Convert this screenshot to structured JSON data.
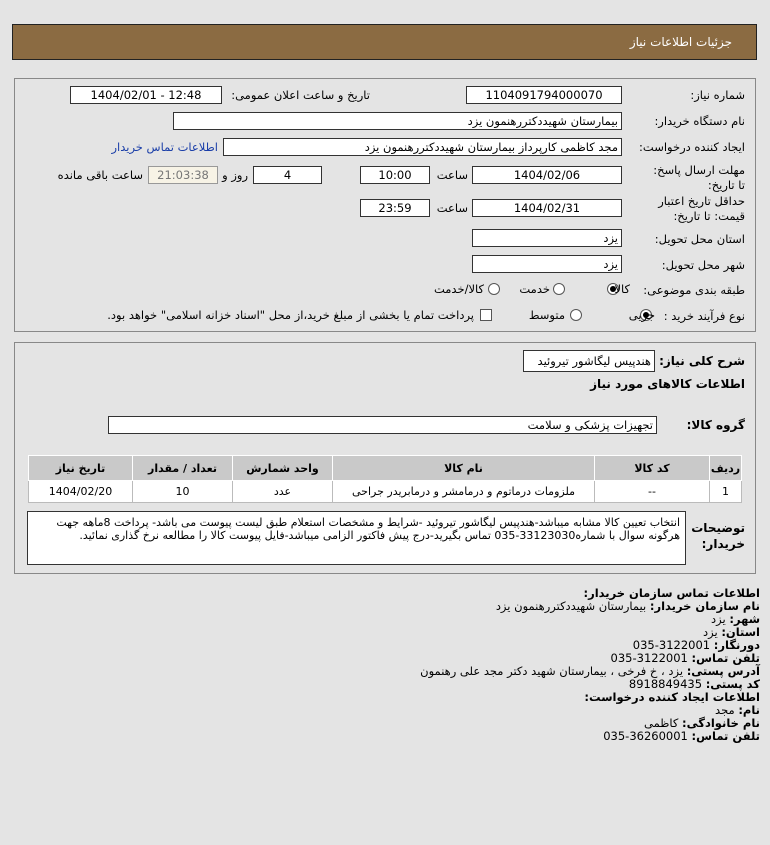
{
  "header": {
    "title": "جزئیات اطلاعات نیاز"
  },
  "form": {
    "need_number_label": "شماره نیاز:",
    "need_number": "1104091794000070",
    "announce_label": "تاریخ و ساعت اعلان عمومی:",
    "announce_value": "1404/02/01 - 12:48",
    "buyer_org_label": "نام دستگاه خریدار:",
    "buyer_org": "بیمارستان شهیددکتررهنمون یزد",
    "creator_label": "ایجاد کننده درخواست:",
    "creator": "مجد کاظمی کارپرداز بیمارستان شهیددکتررهنمون یزد",
    "contact_link": "اطلاعات تماس خریدار",
    "deadline_label": "مهلت ارسال پاسخ: تا تاریخ:",
    "deadline_date": "1404/02/06",
    "time_label": "ساعت",
    "deadline_time": "10:00",
    "days": "4",
    "days_label": "روز و",
    "countdown": "21:03:38",
    "remaining_label": "ساعت باقی مانده",
    "validity_label": "حداقل تاریخ اعتبار قیمت: تا تاریخ:",
    "validity_date": "1404/02/31",
    "validity_time": "23:59",
    "province_label": "استان محل تحویل:",
    "province": "یزد",
    "city_label": "شهر محل تحویل:",
    "city": "یزد",
    "category_label": "طبقه بندی موضوعی:",
    "category_options": [
      "کالا",
      "خدمت",
      "کالا/خدمت"
    ],
    "process_label": "نوع فرآیند خرید :",
    "process_options": [
      "جزیی",
      "متوسط"
    ],
    "payment_note": "پرداخت تمام یا بخشی از مبلغ خرید،از محل \"اسناد خزانه اسلامی\" خواهد بود."
  },
  "summary": {
    "label": "شرح کلی نیاز:",
    "value": "هندپیس لیگاشور تیروئید",
    "goods_title": "اطلاعات کالاهای مورد نیاز",
    "group_label": "گروه کالا:",
    "group": "تجهیزات پزشکی و سلامت"
  },
  "table": {
    "headers": [
      "ردیف",
      "کد کالا",
      "نام کالا",
      "واحد شمارش",
      "تعداد / مقدار",
      "تاریخ نیاز"
    ],
    "rows": [
      [
        "1",
        "--",
        "ملزومات درماتوم و درمامشر و درمابریدر جراحی",
        "عدد",
        "10",
        "1404/02/20"
      ]
    ]
  },
  "notes": {
    "label": "توضیحات خریدار:",
    "text": "انتخاب تعیین کالا مشابه میباشد-هندپیس لیگاشور تیروئید -شرایط و مشخصات استعلام طبق لیست پیوست می باشد- پرداخت 8ماهه جهت هرگونه سوال با شماره33123030-035 تماس بگیرید-درج پیش فاکتور الزامی میباشد-فایل پیوست کالا را مطالعه نرخ گذاری نمائید."
  },
  "contact": {
    "title": "اطلاعات تماس سازمان خریدار:",
    "org_label": "نام سازمان خریدار:",
    "org": "بیمارستان شهیددکتررهنمون یزد",
    "city_label": "شهر:",
    "city": "یزد",
    "province_label": "استان:",
    "province": "یزد",
    "fax_label": "دورنگار:",
    "fax": "3122001-035",
    "phone_label": "تلفن تماس:",
    "phone": "3122001-035",
    "address_label": "آدرس پستی:",
    "address": "یزد ، خ فرخی ، بیمارستان شهید دکتر مجد علی رهنمون",
    "postal_label": "کد پستی:",
    "postal": "8918849435",
    "creator_title": "اطلاعات ایجاد کننده درخواست:",
    "name_label": "نام:",
    "name": "مجد",
    "family_label": "نام خانوادگی:",
    "family": "کاظمی",
    "cphone_label": "تلفن تماس:",
    "cphone": "36260001-035"
  }
}
